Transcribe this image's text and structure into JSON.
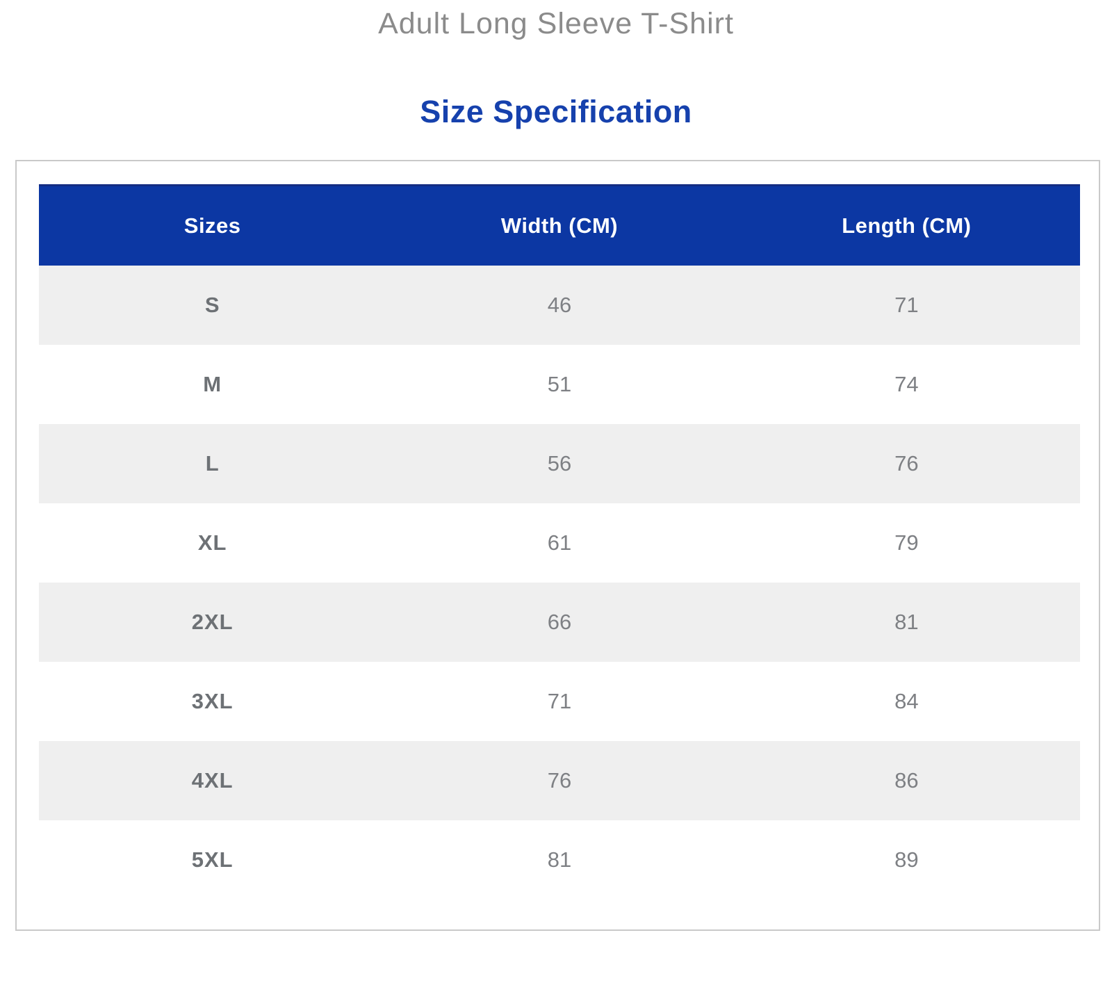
{
  "page": {
    "title": "Adult Long Sleeve T-Shirt",
    "subtitle": "Size Specification"
  },
  "size_table": {
    "columns": [
      "Sizes",
      "Width (CM)",
      "Length (CM)"
    ],
    "rows": [
      {
        "size": "S",
        "width": "46",
        "length": "71"
      },
      {
        "size": "M",
        "width": "51",
        "length": "74"
      },
      {
        "size": "L",
        "width": "56",
        "length": "76"
      },
      {
        "size": "XL",
        "width": "61",
        "length": "79"
      },
      {
        "size": "2XL",
        "width": "66",
        "length": "81"
      },
      {
        "size": "3XL",
        "width": "71",
        "length": "84"
      },
      {
        "size": "4XL",
        "width": "76",
        "length": "86"
      },
      {
        "size": "5XL",
        "width": "81",
        "length": "89"
      }
    ]
  },
  "colors": {
    "header_background": "#0c37a3",
    "header_text": "#ffffff",
    "subtitle_text": "#1641ad",
    "title_text": "#8b8b8b",
    "alt_row_background": "#efefef",
    "cell_text": "#7e8084",
    "container_border": "#c9c9c9"
  }
}
